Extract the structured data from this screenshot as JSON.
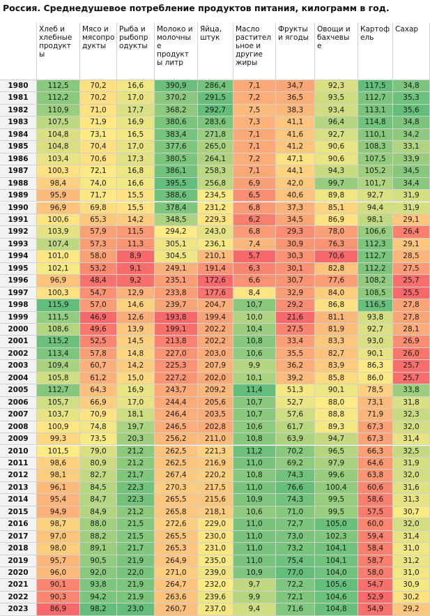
{
  "title": "Россия. Среднедушевое потребление продуктов питания, килограмм в год.",
  "chart_data": {
    "type": "heatmap",
    "title": "Россия. Среднедушевое потребление продуктов питания, килограмм в год.",
    "columns": [
      "Хлеб и хлебные продукт ы",
      "Мясо и мясопро дукты",
      "Рыба и рыбопр одукты",
      "Молоко и молочны е продукт ы литр",
      "Яйца, штук",
      "Масло растител ьное и другие жиры",
      "Фрукты и ягоды",
      "Овощи и бахчевы е",
      "Картоф ель",
      "Сахар"
    ],
    "years": [
      "1980",
      "1981",
      "1982",
      "1983",
      "1984",
      "1985",
      "1986",
      "1987",
      "1988",
      "1989",
      "1990",
      "1991",
      "1992",
      "1993",
      "1994",
      "1995",
      "1996",
      "1997",
      "1998",
      "1999",
      "2000",
      "2001",
      "2002",
      "2003",
      "2004",
      "2005",
      "2006",
      "2007",
      "2008",
      "2009",
      "2010",
      "2011",
      "2012",
      "2013",
      "2014",
      "2015",
      "2016",
      "2017",
      "2018",
      "2019",
      "2020",
      "2021",
      "2022",
      "2023"
    ],
    "rows": [
      [
        "112,5",
        "70,2",
        "16,6",
        "390,9",
        "286,4",
        "7,1",
        "34,7",
        "92,3",
        "117,5",
        "34,8"
      ],
      [
        "112,2",
        "70,2",
        "17,0",
        "370,2",
        "291,5",
        "7,2",
        "36,5",
        "93,5",
        "112,7",
        "35,3"
      ],
      [
        "110,9",
        "71,0",
        "17,7",
        "368,2",
        "292,7",
        "7,5",
        "38,3",
        "93,4",
        "113,1",
        "35,6"
      ],
      [
        "107,5",
        "71,9",
        "16,9",
        "380,6",
        "283,6",
        "7,3",
        "41,1",
        "96,4",
        "114,8",
        "34,8"
      ],
      [
        "104,8",
        "73,1",
        "16,5",
        "383,4",
        "271,8",
        "7,1",
        "41,6",
        "92,7",
        "110,1",
        "34,2"
      ],
      [
        "104,8",
        "70,4",
        "17,0",
        "377,6",
        "265,0",
        "7,1",
        "41,2",
        "90,6",
        "108,3",
        "33,1"
      ],
      [
        "103,4",
        "70,6",
        "17,3",
        "380,5",
        "264,1",
        "7,2",
        "47,1",
        "90,6",
        "107,5",
        "33,9"
      ],
      [
        "100,3",
        "72,1",
        "16,8",
        "386,1",
        "258,3",
        "7,1",
        "44,1",
        "94,3",
        "105,2",
        "34,5"
      ],
      [
        "98,4",
        "74,0",
        "16,6",
        "395,5",
        "256,8",
        "6,9",
        "42,0",
        "99,7",
        "101,7",
        "34,4"
      ],
      [
        "95,9",
        "71,7",
        "15,5",
        "388,6",
        "234,5",
        "6,5",
        "40,6",
        "89,8",
        "92,7",
        "31,9"
      ],
      [
        "96,9",
        "69,8",
        "15,5",
        "378,4",
        "231,2",
        "6,8",
        "37,3",
        "85,1",
        "94,4",
        "31,9"
      ],
      [
        "100,6",
        "65,3",
        "14,2",
        "348,5",
        "229,3",
        "6,2",
        "34,5",
        "86,9",
        "98,1",
        "29,1"
      ],
      [
        "103,9",
        "57,9",
        "11,5",
        "294,2",
        "243,0",
        "6,8",
        "29,3",
        "78,0",
        "106,6",
        "26,4"
      ],
      [
        "107,4",
        "57,3",
        "11,3",
        "305,1",
        "236,1",
        "7,4",
        "30,9",
        "76,3",
        "112,3",
        "29,1"
      ],
      [
        "101,0",
        "58,0",
        "8,9",
        "304,5",
        "210,1",
        "5,7",
        "30,3",
        "70,6",
        "112,7",
        "28,5"
      ],
      [
        "102,1",
        "53,2",
        "9,1",
        "249,1",
        "191,4",
        "6,3",
        "30,1",
        "82,8",
        "112,2",
        "27,5"
      ],
      [
        "96,9",
        "48,4",
        "9,2",
        "235,1",
        "172,6",
        "6,6",
        "30,7",
        "77,6",
        "108,2",
        "25,7"
      ],
      [
        "100,3",
        "54,7",
        "12,9",
        "233,8",
        "177,6",
        "8,4",
        "32,9",
        "84,0",
        "108,5",
        "25,5"
      ],
      [
        "115,9",
        "57,0",
        "14,6",
        "239,7",
        "204,7",
        "10,7",
        "29,2",
        "86,8",
        "116,5",
        "27,8"
      ],
      [
        "111,5",
        "46,9",
        "12,6",
        "193,8",
        "199,4",
        "10,0",
        "21,6",
        "81,1",
        "93,8",
        "27,8"
      ],
      [
        "108,6",
        "49,6",
        "13,9",
        "199,1",
        "202,2",
        "10,4",
        "27,5",
        "81,9",
        "92,7",
        "28,1"
      ],
      [
        "115,2",
        "52,5",
        "14,5",
        "213,8",
        "202,2",
        "10,8",
        "33,4",
        "83,3",
        "93,0",
        "26,9"
      ],
      [
        "113,4",
        "57,8",
        "14,8",
        "227,0",
        "203,0",
        "10,6",
        "35,5",
        "82,7",
        "90,1",
        "26,0"
      ],
      [
        "109,4",
        "60,7",
        "14,2",
        "225,3",
        "207,9",
        "9,9",
        "36,2",
        "83,9",
        "86,3",
        "25,7"
      ],
      [
        "105,8",
        "61,2",
        "15,0",
        "227,2",
        "202,0",
        "10,1",
        "39,2",
        "85,8",
        "86,0",
        "25,7"
      ],
      [
        "112,7",
        "64,3",
        "16,9",
        "243,7",
        "209,2",
        "11,4",
        "51,3",
        "90,1",
        "78,5",
        "33,8"
      ],
      [
        "105,7",
        "66,9",
        "17,0",
        "244,4",
        "205,6",
        "10,7",
        "52,7",
        "88,0",
        "73,1",
        "31,8"
      ],
      [
        "103,7",
        "70,9",
        "18,1",
        "246,4",
        "203,5",
        "10,7",
        "57,6",
        "88,8",
        "71,9",
        "32,3"
      ],
      [
        "100,9",
        "74,8",
        "19,7",
        "246,5",
        "202,8",
        "10,6",
        "61,7",
        "89,3",
        "67,3",
        "32,0"
      ],
      [
        "99,3",
        "73,5",
        "20,3",
        "256,2",
        "211,0",
        "10,8",
        "63,9",
        "94,7",
        "67,3",
        "31,4"
      ],
      [
        "101,5",
        "79,0",
        "21,2",
        "262,5",
        "221,3",
        "11,2",
        "70,2",
        "96,5",
        "66,3",
        "32,5"
      ],
      [
        "98,6",
        "80,9",
        "21,2",
        "262,5",
        "216,9",
        "11,0",
        "69,2",
        "97,9",
        "64,6",
        "31,9"
      ],
      [
        "98,1",
        "82,7",
        "21,7",
        "267,4",
        "220,2",
        "10,8",
        "74,3",
        "99,6",
        "63,8",
        "32,0"
      ],
      [
        "96,1",
        "84,5",
        "22,3",
        "270,3",
        "217,5",
        "11,0",
        "76,6",
        "100,4",
        "60,6",
        "31,6"
      ],
      [
        "95,4",
        "84,7",
        "22,3",
        "265,5",
        "215,6",
        "10,9",
        "74,3",
        "99,5",
        "58,6",
        "31,3"
      ],
      [
        "94,9",
        "84,9",
        "21,2",
        "265,8",
        "218,1",
        "10,6",
        "71,0",
        "99,5",
        "57,5",
        "30,7"
      ],
      [
        "98,7",
        "88,0",
        "21,5",
        "272,6",
        "229,0",
        "11,0",
        "72,7",
        "105,0",
        "60,0",
        "32,0"
      ],
      [
        "97,0",
        "88,2",
        "21,5",
        "265,5",
        "230,0",
        "11,0",
        "73,0",
        "102,3",
        "59,4",
        "31,4"
      ],
      [
        "98,0",
        "89,1",
        "21,7",
        "265,3",
        "231,0",
        "11,0",
        "73,2",
        "104,1",
        "58,4",
        "31,0"
      ],
      [
        "95,7",
        "90,5",
        "21,9",
        "264,9",
        "235,0",
        "11,0",
        "75,4",
        "104,1",
        "58,7",
        "31,2"
      ],
      [
        "96,0",
        "92,0",
        "22,0",
        "271,0",
        "239,0",
        "10,9",
        "77,0",
        "104,0",
        "58,0",
        "31,0"
      ],
      [
        "90,1",
        "93,8",
        "21,9",
        "264,7",
        "232,0",
        "9,7",
        "72,2",
        "105,6",
        "54,7",
        "30,9"
      ],
      [
        "90,3",
        "94,2",
        "21,9",
        "263,6",
        "239,6",
        "9,9",
        "72,1",
        "104,6",
        "52,9",
        "30,2"
      ],
      [
        "86,9",
        "98,2",
        "23,0",
        "260,7",
        "237,0",
        "9,4",
        "71,6",
        "104,8",
        "54,9",
        "29,2"
      ]
    ],
    "color_scale": {
      "low": "#f8696b",
      "mid": "#ffeb84",
      "high": "#63be7b"
    }
  }
}
